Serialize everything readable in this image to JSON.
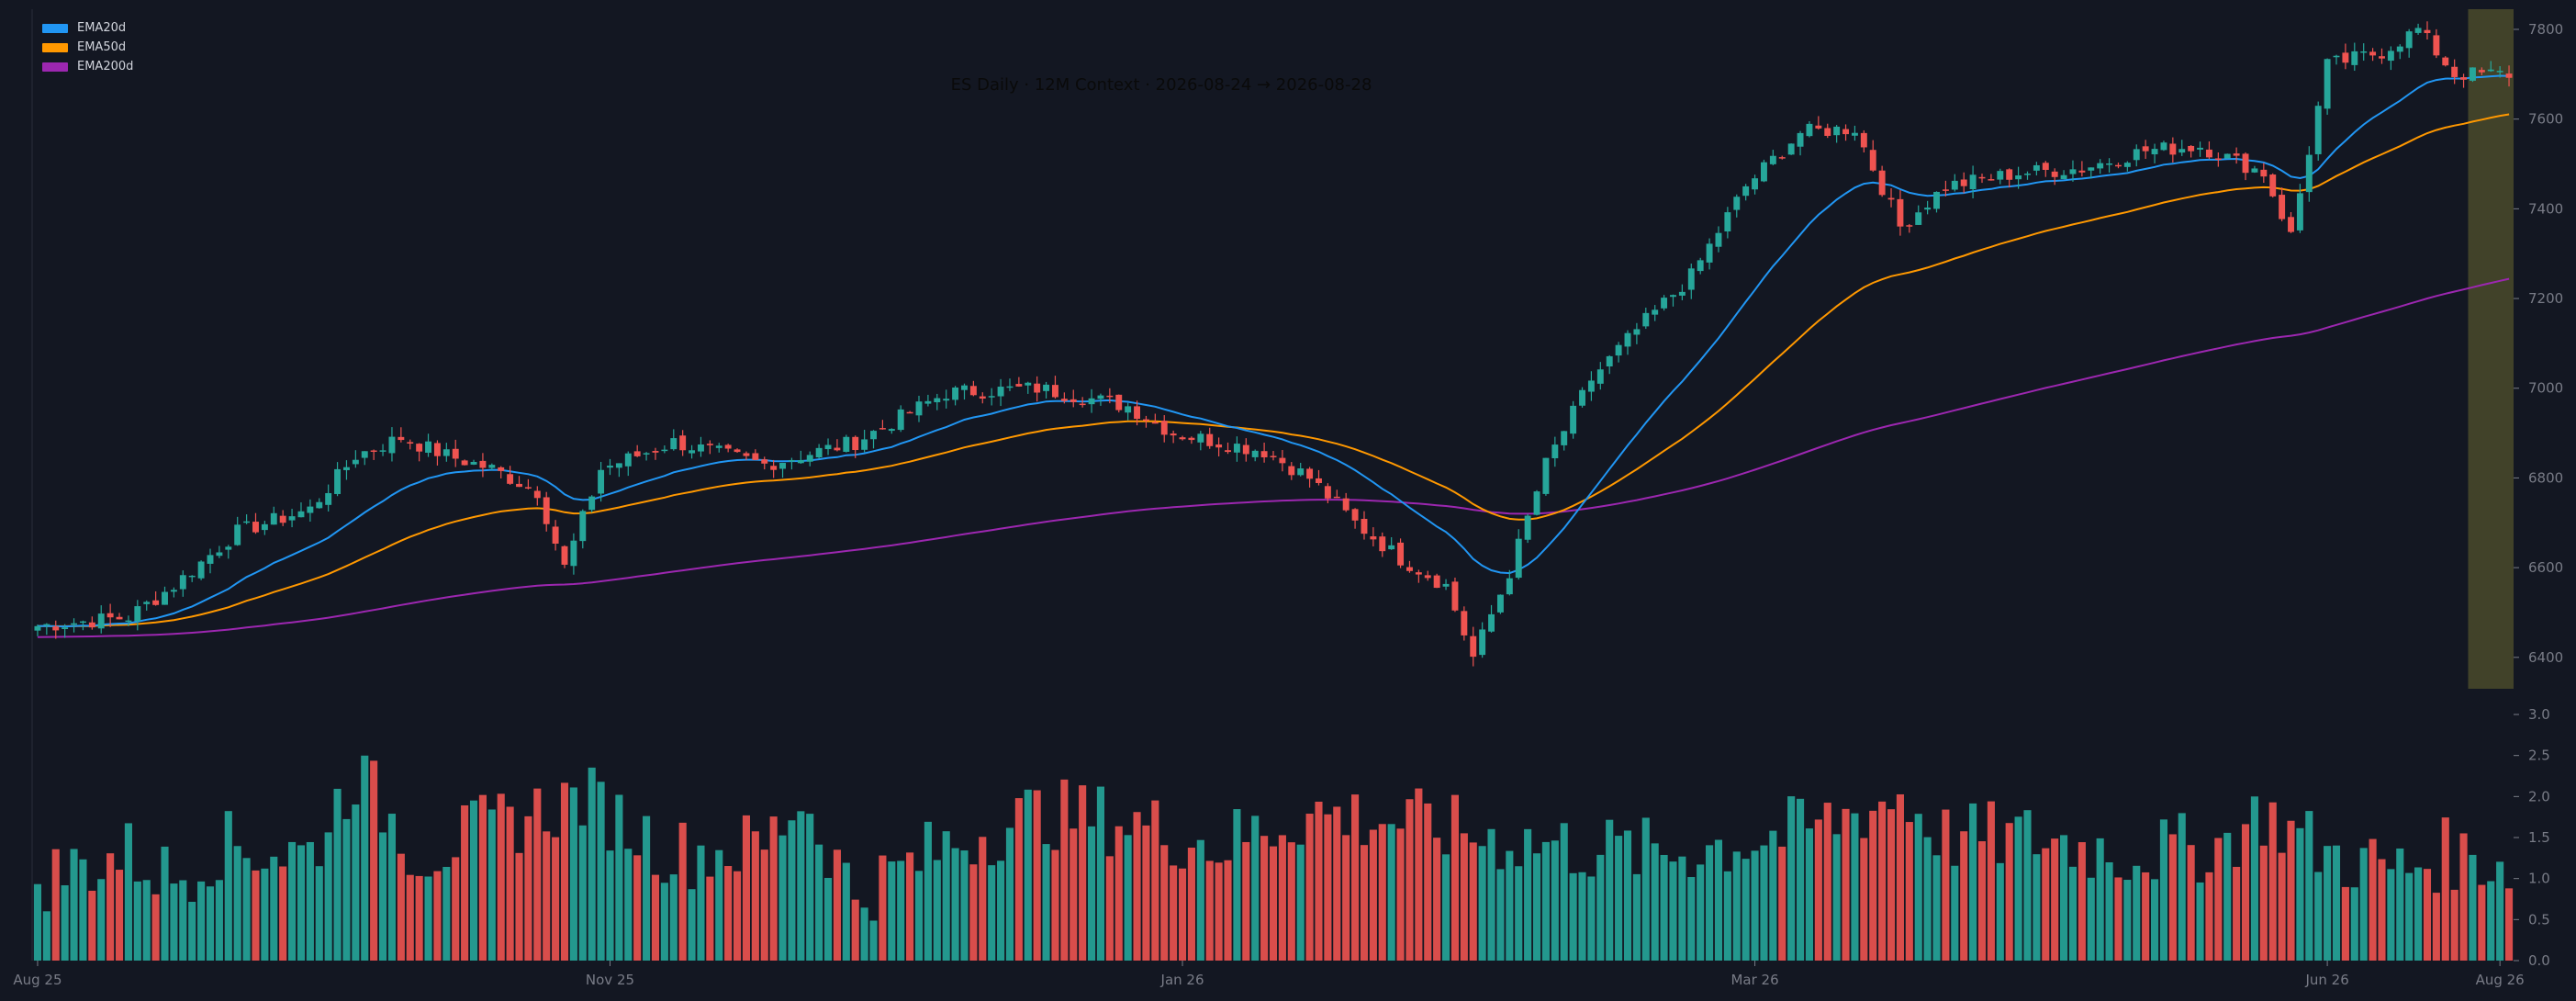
{
  "chart_title": "ES Daily · 12M Context · 2026-08-24 → 2026-08-28",
  "colors": {
    "background": "#131722",
    "up": "#26a69a",
    "down": "#ef5350",
    "ema20": "#2196f3",
    "ema50": "#ff9800",
    "ema200": "#9c27b0",
    "highlight": "#4a4a2a",
    "axis_text": "#787b86"
  },
  "legend": [
    {
      "label": "EMA20d",
      "color": "#2196f3"
    },
    {
      "label": "EMA50d",
      "color": "#ff9800"
    },
    {
      "label": "EMA200d",
      "color": "#9c27b0"
    }
  ],
  "chart_data": {
    "type": "candlestick",
    "title": "ES Daily · 12M Context · 2026-08-24 → 2026-08-28",
    "x_tick_labels": [
      "Aug 25",
      "Nov 25",
      "Jan 26",
      "Mar 26",
      "Jun 26",
      "Aug 26"
    ],
    "price_axis": {
      "ticks": [
        6400,
        6600,
        6800,
        7000,
        7200,
        7400,
        7600,
        7800
      ],
      "range": [
        6330,
        7845
      ],
      "position": "right"
    },
    "volume_axis": {
      "ticks": [
        "0.0",
        "0.5",
        "1.0",
        "1.5",
        "2.0",
        "2.5",
        "3.0"
      ],
      "range": [
        0,
        3.0
      ],
      "position": "right"
    },
    "highlight_region": {
      "label": "2026-08-24 → 2026-08-28",
      "from_index": 268,
      "to_index": 272
    },
    "close_keyframes": [
      [
        0,
        6470
      ],
      [
        10,
        6490
      ],
      [
        15,
        6560
      ],
      [
        22,
        6680
      ],
      [
        30,
        6730
      ],
      [
        35,
        6850
      ],
      [
        40,
        6890
      ],
      [
        45,
        6850
      ],
      [
        50,
        6820
      ],
      [
        55,
        6770
      ],
      [
        58,
        6600
      ],
      [
        62,
        6820
      ],
      [
        70,
        6880
      ],
      [
        80,
        6830
      ],
      [
        90,
        6880
      ],
      [
        100,
        6990
      ],
      [
        110,
        7000
      ],
      [
        120,
        6960
      ],
      [
        125,
        6900
      ],
      [
        135,
        6860
      ],
      [
        140,
        6800
      ],
      [
        145,
        6700
      ],
      [
        150,
        6620
      ],
      [
        155,
        6560
      ],
      [
        158,
        6400
      ],
      [
        162,
        6590
      ],
      [
        166,
        6830
      ],
      [
        171,
        7020
      ],
      [
        176,
        7130
      ],
      [
        182,
        7250
      ],
      [
        188,
        7450
      ],
      [
        194,
        7570
      ],
      [
        200,
        7580
      ],
      [
        205,
        7360
      ],
      [
        210,
        7450
      ],
      [
        218,
        7480
      ],
      [
        225,
        7490
      ],
      [
        232,
        7530
      ],
      [
        238,
        7540
      ],
      [
        245,
        7480
      ],
      [
        248,
        7340
      ],
      [
        252,
        7720
      ],
      [
        258,
        7750
      ],
      [
        262,
        7800
      ],
      [
        266,
        7700
      ],
      [
        271,
        7700
      ]
    ],
    "volume_keyframes": [
      [
        0,
        1.0
      ],
      [
        10,
        1.3
      ],
      [
        15,
        1.0
      ],
      [
        20,
        1.4
      ],
      [
        30,
        1.3
      ],
      [
        35,
        2.3
      ],
      [
        42,
        1.3
      ],
      [
        52,
        1.7
      ],
      [
        60,
        2.0
      ],
      [
        70,
        1.3
      ],
      [
        80,
        1.4
      ],
      [
        84,
        2.0
      ],
      [
        90,
        0.8
      ],
      [
        100,
        1.4
      ],
      [
        110,
        1.8
      ],
      [
        120,
        1.7
      ],
      [
        130,
        1.4
      ],
      [
        140,
        1.8
      ],
      [
        150,
        1.7
      ],
      [
        160,
        1.5
      ],
      [
        168,
        1.4
      ],
      [
        178,
        1.3
      ],
      [
        185,
        1.4
      ],
      [
        195,
        1.6
      ],
      [
        205,
        2.0
      ],
      [
        210,
        1.5
      ],
      [
        220,
        1.5
      ],
      [
        230,
        1.3
      ],
      [
        240,
        1.4
      ],
      [
        245,
        1.8
      ],
      [
        252,
        1.3
      ],
      [
        260,
        1.1
      ],
      [
        265,
        1.3
      ],
      [
        272,
        1.2
      ]
    ],
    "n_bars": 273,
    "ema_periods": [
      20,
      50,
      200
    ],
    "ema200_start": [
      6445,
      6460
    ]
  }
}
